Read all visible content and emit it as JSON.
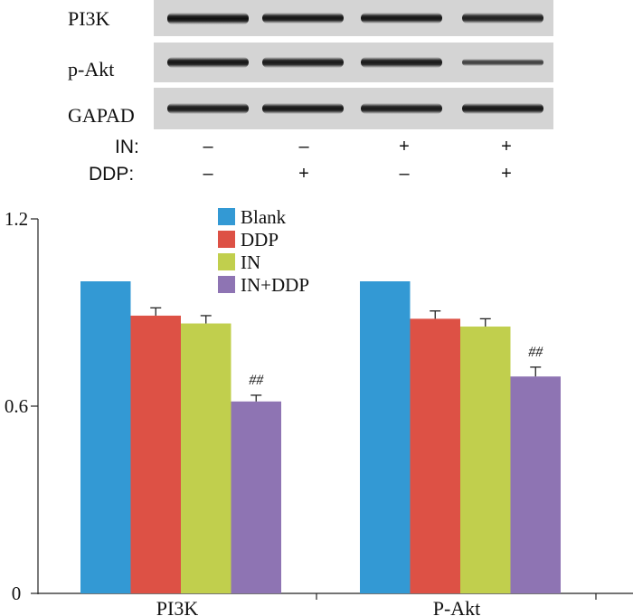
{
  "blot": {
    "rows": [
      {
        "label": "PI3K",
        "intensities": [
          1.0,
          0.95,
          0.95,
          0.85
        ]
      },
      {
        "label": "p-Akt",
        "intensities": [
          0.95,
          0.9,
          0.9,
          0.55
        ]
      },
      {
        "label": "GAPAD",
        "intensities": [
          0.9,
          0.95,
          0.9,
          0.95
        ]
      }
    ],
    "conditions": [
      {
        "label": "IN:",
        "signs": [
          "–",
          "–",
          "+",
          "+"
        ]
      },
      {
        "label": "DDP:",
        "signs": [
          "–",
          "+",
          "–",
          "+"
        ]
      }
    ]
  },
  "chart_data": {
    "type": "bar",
    "categories": [
      "PI3K",
      "P-Akt"
    ],
    "series": [
      {
        "name": "Blank",
        "color": "#3399d4",
        "values": [
          1.0,
          1.0
        ],
        "errors": [
          0,
          0
        ],
        "annotations": [
          "",
          ""
        ]
      },
      {
        "name": "DDP",
        "color": "#dd5145",
        "values": [
          0.89,
          0.88
        ],
        "errors": [
          0.025,
          0.025
        ],
        "annotations": [
          "",
          ""
        ]
      },
      {
        "name": "IN",
        "color": "#c1cf4d",
        "values": [
          0.865,
          0.855
        ],
        "errors": [
          0.025,
          0.025
        ],
        "annotations": [
          "",
          ""
        ]
      },
      {
        "name": "IN+DDP",
        "color": "#8e74b3",
        "values": [
          0.615,
          0.695
        ],
        "errors": [
          0.02,
          0.03
        ],
        "annotations": [
          "##",
          "##"
        ]
      }
    ],
    "yticks": [
      "0",
      "0.6",
      "1.2"
    ],
    "ytick_values": [
      0,
      0.6,
      1.2
    ],
    "ylim": [
      0,
      1.2
    ],
    "title": "",
    "xlabel": "",
    "ylabel": ""
  }
}
